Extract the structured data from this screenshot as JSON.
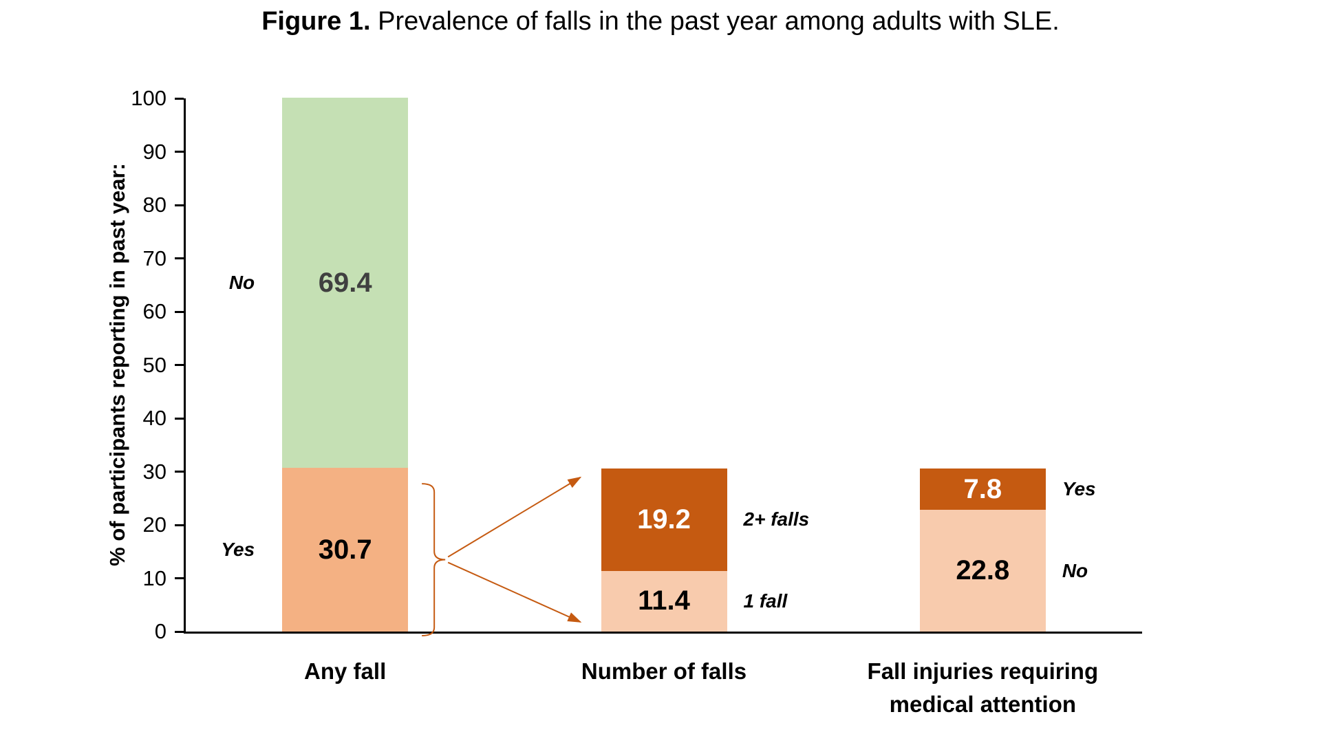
{
  "title": {
    "prefix": "Figure 1.",
    "rest": " Prevalence of falls in the past year among adults with SLE."
  },
  "chart_data": {
    "type": "bar",
    "variant": "stacked",
    "title": "Figure 1. Prevalence of falls in the past year among adults with SLE.",
    "ylabel": "% of participants reporting in past year:",
    "xlabel": "",
    "ylim": [
      0,
      100
    ],
    "yticks": [
      0,
      10,
      20,
      30,
      40,
      50,
      60,
      70,
      80,
      90,
      100
    ],
    "grid": false,
    "legend": "none",
    "axis_color": "#000000",
    "categories": [
      "Any fall",
      "Number of falls",
      "Fall injuries requiring\nmedical attention"
    ],
    "bars": [
      {
        "category": "Any fall",
        "segments": [
          {
            "label": "Yes",
            "value": 30.7,
            "fill": "#F4B183",
            "value_text_color": "#000000",
            "label_side": "left"
          },
          {
            "label": "No",
            "value": 69.4,
            "fill": "#C5E0B4",
            "value_text_color": "#404040",
            "label_side": "left"
          }
        ]
      },
      {
        "category": "Number of falls",
        "segments": [
          {
            "label": "1 fall",
            "value": 11.4,
            "fill": "#F8CBAD",
            "value_text_color": "#000000",
            "label_side": "right"
          },
          {
            "label": "2+ falls",
            "value": 19.2,
            "fill": "#C55A11",
            "value_text_color": "#FFFFFF",
            "label_side": "right"
          }
        ]
      },
      {
        "category": "Fall injuries requiring\nmedical attention",
        "segments": [
          {
            "label": "No",
            "value": 22.8,
            "fill": "#F8CBAD",
            "value_text_color": "#000000",
            "label_side": "right"
          },
          {
            "label": "Yes",
            "value": 7.8,
            "fill": "#C55A11",
            "value_text_color": "#FFFFFF",
            "label_side": "right"
          }
        ]
      }
    ],
    "annotation": {
      "type": "brace-with-arrows",
      "from_category": "Any fall",
      "from_segment": "Yes",
      "to_category": "Number of falls",
      "color": "#C55A11"
    }
  }
}
